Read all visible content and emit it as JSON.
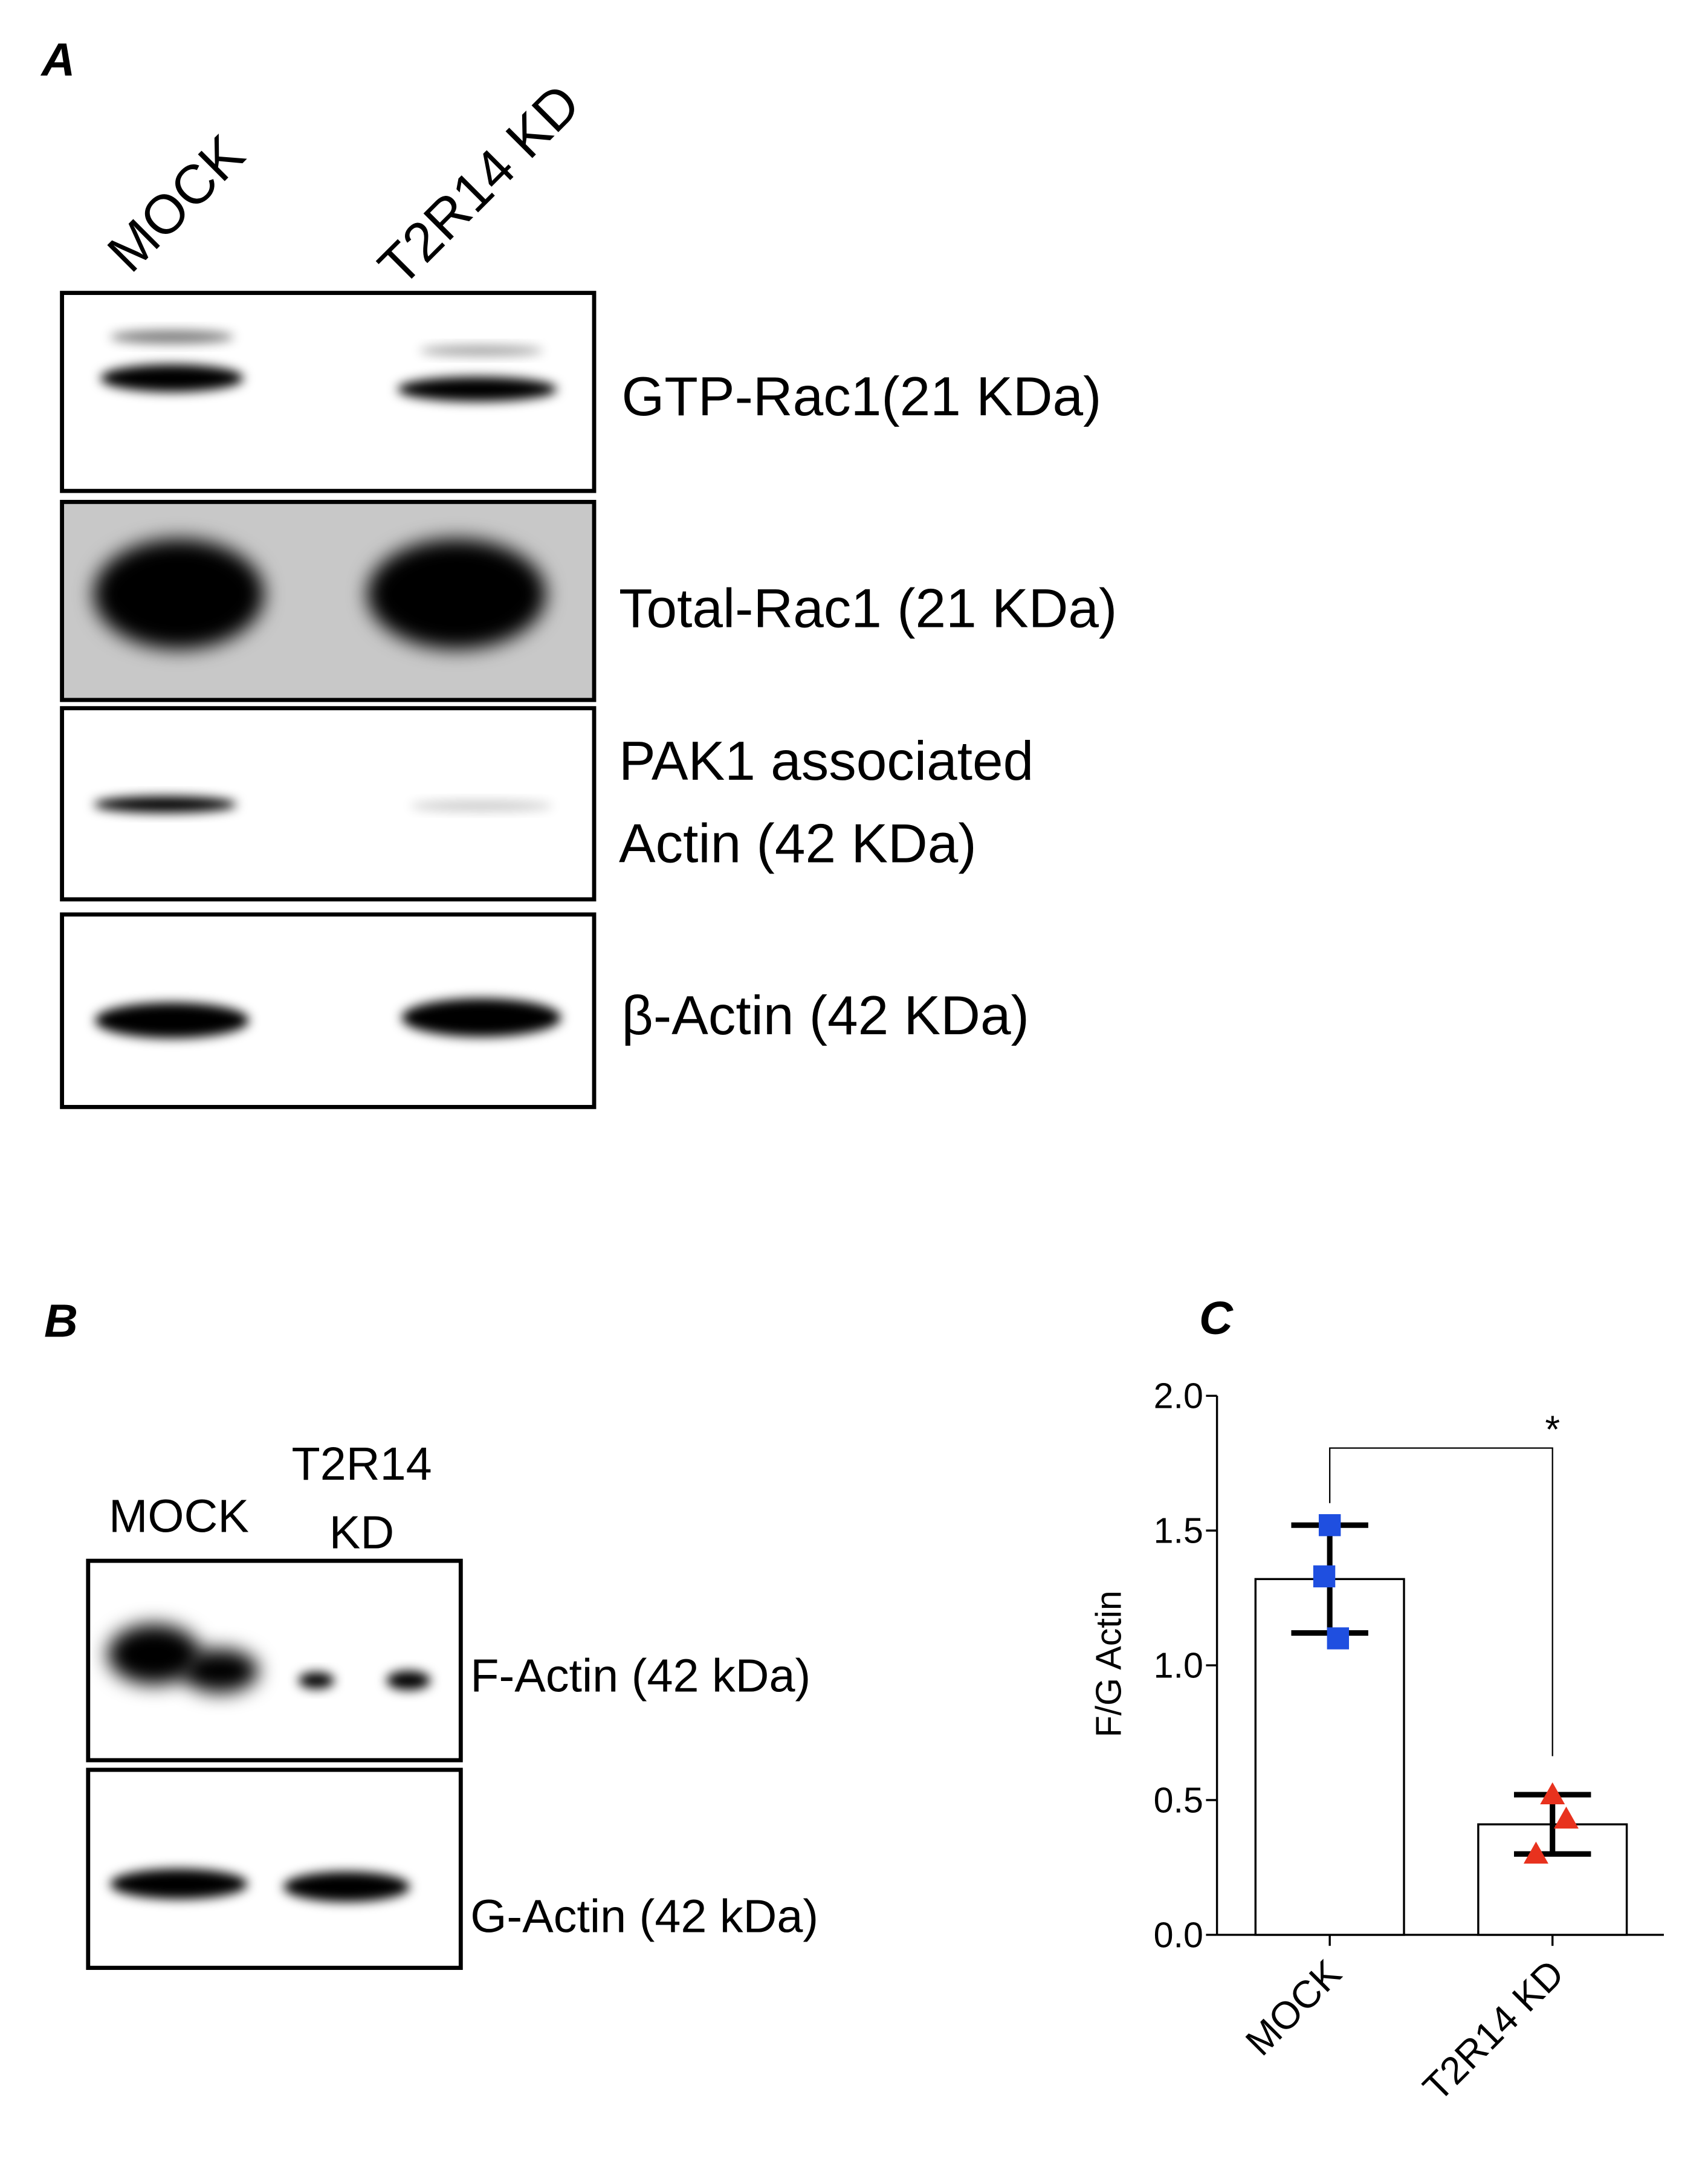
{
  "panel_a": {
    "label": "A",
    "lanes": [
      "MOCK",
      "T2R14 KD"
    ],
    "blots": [
      [
        "GTP-Rac1(21 KDa)"
      ],
      [
        "Total-Rac1 (21 KDa)"
      ],
      [
        "PAK1 associated",
        "Actin (42 KDa)"
      ],
      [
        "β-Actin (42 KDa)"
      ]
    ]
  },
  "panel_b": {
    "label": "B",
    "lanes": [
      [
        "MOCK"
      ],
      [
        "T2R14",
        "KD"
      ]
    ],
    "blots": [
      "F-Actin (42 kDa)",
      "G-Actin (42 kDa)"
    ]
  },
  "panel_c": {
    "label": "C"
  },
  "chart_data": {
    "type": "bar",
    "y_label": "F/G Actin",
    "categories": [
      "MOCK",
      "T2R14 KD"
    ],
    "values": [
      1.32,
      0.41
    ],
    "errors": [
      0.2,
      0.11
    ],
    "points": [
      [
        1.52,
        1.33,
        1.1
      ],
      [
        0.52,
        0.43,
        0.3
      ]
    ],
    "point_colors": [
      "#1f4fe0",
      "#e8321e"
    ],
    "point_shapes": [
      "square",
      "triangle"
    ],
    "significance": "*",
    "ylim": [
      0,
      2
    ],
    "yticks": [
      {
        "value": 0,
        "label": "0.0"
      },
      {
        "value": 0.5,
        "label": "0.5"
      },
      {
        "value": 1,
        "label": "1.0"
      },
      {
        "value": 1.5,
        "label": "1.5"
      },
      {
        "value": 2,
        "label": "2.0"
      }
    ]
  }
}
